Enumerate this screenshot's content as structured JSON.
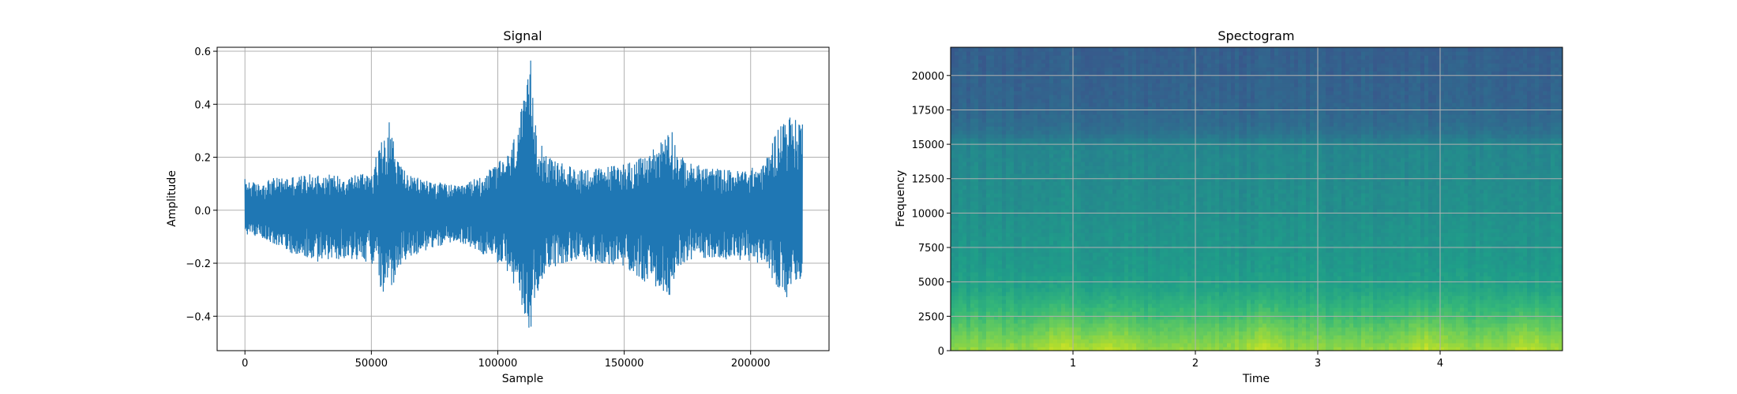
{
  "chart_data": [
    {
      "type": "line",
      "title": "Signal",
      "xlabel": "Sample",
      "ylabel": "Amplitude",
      "xlim": [
        -11000,
        231000
      ],
      "ylim": [
        -0.53,
        0.615
      ],
      "xticks": [
        0,
        50000,
        100000,
        150000,
        200000
      ],
      "xtick_labels": [
        "0",
        "50000",
        "100000",
        "150000",
        "200000"
      ],
      "yticks": [
        -0.4,
        -0.2,
        0.0,
        0.2,
        0.4,
        0.6
      ],
      "ytick_labels": [
        "−0.4",
        "−0.2",
        "0.0",
        "0.2",
        "0.4",
        "0.6"
      ],
      "grid": true,
      "color": "#1f77b4",
      "n_samples": 220500,
      "envelope": {
        "x": [
          0,
          5000,
          10000,
          20000,
          30000,
          40000,
          50000,
          54000,
          56000,
          57500,
          60000,
          65000,
          75000,
          85000,
          95000,
          100000,
          105000,
          108000,
          111000,
          112000,
          113000,
          114000,
          116000,
          120000,
          130000,
          140000,
          150000,
          158000,
          165000,
          168000,
          171000,
          175000,
          185000,
          195000,
          205000,
          210000,
          214000,
          218000,
          220500
        ],
        "upper": [
          0.12,
          0.1,
          0.12,
          0.13,
          0.14,
          0.13,
          0.15,
          0.26,
          0.33,
          0.34,
          0.2,
          0.13,
          0.11,
          0.09,
          0.14,
          0.18,
          0.22,
          0.34,
          0.44,
          0.5,
          0.57,
          0.42,
          0.3,
          0.2,
          0.16,
          0.16,
          0.18,
          0.2,
          0.27,
          0.35,
          0.22,
          0.18,
          0.16,
          0.15,
          0.17,
          0.3,
          0.37,
          0.34,
          0.37
        ],
        "lower": [
          -0.09,
          -0.1,
          -0.12,
          -0.17,
          -0.2,
          -0.18,
          -0.2,
          -0.3,
          -0.34,
          -0.33,
          -0.24,
          -0.18,
          -0.14,
          -0.12,
          -0.17,
          -0.2,
          -0.25,
          -0.33,
          -0.42,
          -0.47,
          -0.48,
          -0.4,
          -0.3,
          -0.22,
          -0.19,
          -0.2,
          -0.22,
          -0.27,
          -0.31,
          -0.32,
          -0.22,
          -0.19,
          -0.18,
          -0.19,
          -0.2,
          -0.28,
          -0.34,
          -0.3,
          -0.26
        ]
      }
    },
    {
      "type": "heatmap",
      "title": "Spectogram",
      "xlabel": "Time",
      "ylabel": "Frequency",
      "xlim": [
        0,
        5.0
      ],
      "ylim": [
        0,
        22050
      ],
      "xticks": [
        1,
        2,
        3,
        4
      ],
      "xtick_labels": [
        "1",
        "2",
        "3",
        "4"
      ],
      "yticks": [
        0,
        2500,
        5000,
        7500,
        10000,
        12500,
        15000,
        17500,
        20000
      ],
      "ytick_labels": [
        "0",
        "2500",
        "5000",
        "7500",
        "10000",
        "12500",
        "15000",
        "17500",
        "20000"
      ],
      "grid": true,
      "colormap": "viridis",
      "frequency_profile": {
        "freq": [
          0,
          1500,
          3000,
          4500,
          6000,
          8000,
          10000,
          12500,
          15000,
          15800,
          16500,
          18000,
          22050
        ],
        "level": [
          0.84,
          0.75,
          0.66,
          0.58,
          0.54,
          0.52,
          0.5,
          0.48,
          0.46,
          0.38,
          0.35,
          0.32,
          0.3
        ]
      },
      "bright_times": [
        0.9,
        1.3,
        2.55,
        3.9,
        4.7
      ]
    }
  ]
}
